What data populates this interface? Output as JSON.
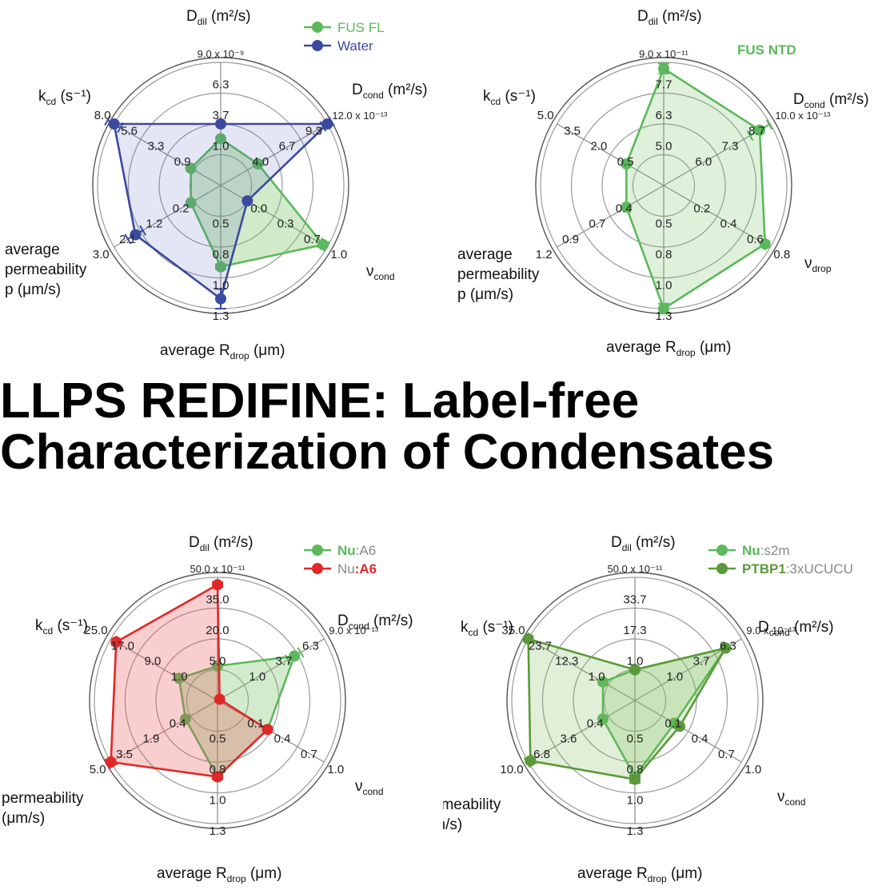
{
  "headline": {
    "line1": "LLPS REDIFINE: Label-free",
    "line2": "Characterization of Condensates"
  },
  "chart_data": [
    {
      "type": "radar",
      "axes": [
        {
          "name": "D",
          "sub": "dil",
          "unit": " (m²/s)",
          "ticks": [
            "1.0",
            "3.7",
            "6.3",
            "9.0 x 10⁻⁹"
          ]
        },
        {
          "name": "D",
          "sub": "cond",
          "unit": " (m²/s)",
          "ticks": [
            "4.0",
            "6.7",
            "9.3",
            "12.0 x 10⁻¹³"
          ]
        },
        {
          "name": "ν",
          "sub": "cond",
          "unit": "",
          "ticks": [
            "0.0",
            "0.3",
            "0.7",
            "1.0"
          ]
        },
        {
          "name": "average R",
          "sub": "drop",
          "unit": " (μm)",
          "ticks": [
            "0.5",
            "0.8",
            "1.0",
            "1.3"
          ]
        },
        {
          "name": "average\npermeability\np (μm/s)",
          "sub": "",
          "unit": "",
          "ticks": [
            "0.2",
            "1.2",
            "2.1",
            "3.0"
          ]
        },
        {
          "name": "k",
          "sub": "cd",
          "unit": " (s⁻¹)",
          "ticks": [
            "0.9",
            "3.3",
            "5.6",
            "8.0"
          ]
        }
      ],
      "series": [
        {
          "name": "FUS FL",
          "color": "#5cb85c",
          "fill": "rgba(110,190,90,0.32)",
          "values": [
            0.38,
            0.35,
            0.96,
            0.66,
            0.28,
            0.28
          ],
          "errors": [
            0,
            0,
            0.03,
            0.02,
            0,
            0
          ]
        },
        {
          "name": "Water",
          "color": "#3b4aa0",
          "fill": "rgba(90,100,190,0.16)",
          "values": [
            0.5,
            1.0,
            0.25,
            0.92,
            0.8,
            1.0
          ],
          "errors": [
            0,
            0.04,
            0,
            0.08,
            0.07,
            0.06
          ]
        }
      ],
      "legend": "top-right"
    },
    {
      "type": "radar",
      "axes": [
        {
          "name": "D",
          "sub": "dil",
          "unit": " (m²/s)",
          "ticks": [
            "5.0",
            "6.3",
            "7.7",
            "9.0 x 10⁻¹¹"
          ]
        },
        {
          "name": "D",
          "sub": "cond",
          "unit": " (m²/s)",
          "ticks": [
            "6.0",
            "7.3",
            "8.7",
            "10.0 x 10⁻¹³"
          ]
        },
        {
          "name": "ν",
          "sub": "drop",
          "unit": "",
          "ticks": [
            "0.2",
            "0.4",
            "0.6",
            "0.8"
          ]
        },
        {
          "name": "average R",
          "sub": "drop",
          "unit": " (μm)",
          "ticks": [
            "0.5",
            "0.8",
            "1.0",
            "1.3"
          ]
        },
        {
          "name": "average\npermeability\np (μm/s)",
          "sub": "",
          "unit": "",
          "ticks": [
            "0.4",
            "0.7",
            "0.9",
            "1.2"
          ]
        },
        {
          "name": "k",
          "sub": "cd",
          "unit": " (s⁻¹)",
          "ticks": [
            "0.5",
            "2.0",
            "3.5",
            "5.0"
          ]
        }
      ],
      "series": [
        {
          "name": "FUS NTD",
          "color": "#5cb85c",
          "fill": "rgba(110,190,90,0.22)",
          "values": [
            0.95,
            0.9,
            0.95,
            1.0,
            0.35,
            0.35
          ],
          "errors": [
            0.04,
            0.09,
            0.02,
            0.04,
            0,
            0
          ]
        }
      ],
      "legend": "top-right"
    },
    {
      "type": "radar",
      "axes": [
        {
          "name": "D",
          "sub": "dil",
          "unit": " (m²/s)",
          "ticks": [
            "5.0",
            "20.0",
            "35.0",
            "50.0 x 10⁻¹¹"
          ]
        },
        {
          "name": "D",
          "sub": "cond",
          "unit": " (m²/s)",
          "ticks": [
            "1.0",
            "3.7",
            "6.3",
            "9.0 x 10⁻¹³"
          ]
        },
        {
          "name": "ν",
          "sub": "cond",
          "unit": "",
          "ticks": [
            "0.1",
            "0.4",
            "0.7",
            "1.0"
          ]
        },
        {
          "name": "average R",
          "sub": "drop",
          "unit": " (μm)",
          "ticks": [
            "0.5",
            "0.8",
            "1.0",
            "1.3"
          ]
        },
        {
          "name": "permeability\n(μm/s)",
          "sub": "",
          "unit": "",
          "ticks": [
            "0.4",
            "1.9",
            "3.5",
            "5.0"
          ]
        },
        {
          "name": "k",
          "sub": "cd",
          "unit": " (s⁻¹)",
          "ticks": [
            "1.0",
            "9.0",
            "17.0",
            "25.0"
          ]
        }
      ],
      "series": [
        {
          "name": "Nu",
          "nameSuffix": ":A6",
          "color": "#5cb85c",
          "fill": "rgba(110,190,90,0.30)",
          "values": [
            0.28,
            0.72,
            0.47,
            0.62,
            0.3,
            0.36
          ],
          "errors": [
            0,
            0.06,
            0,
            0,
            0,
            0
          ]
        },
        {
          "name": "Nu",
          "nameSuffix": ":A6",
          "color": "#e02828",
          "fill": "rgba(230,80,80,0.28)",
          "values": [
            0.94,
            0.02,
            0.47,
            0.62,
            1.0,
            0.95
          ],
          "errors": [
            0.02,
            0,
            0,
            0.02,
            0.03,
            0.02
          ]
        }
      ],
      "legend": "top-right"
    },
    {
      "type": "radar",
      "axes": [
        {
          "name": "D",
          "sub": "dil",
          "unit": " (m²/s)",
          "ticks": [
            "1.0",
            "17.3",
            "33.7",
            "50.0 x 10⁻¹¹"
          ]
        },
        {
          "name": "D",
          "sub": "cond",
          "unit": " (m²/s)",
          "ticks": [
            "1.0",
            "3.7",
            "6.3",
            "9.0 x 10⁻¹³"
          ]
        },
        {
          "name": "ν",
          "sub": "cond",
          "unit": "",
          "ticks": [
            "0.1",
            "0.4",
            "0.7",
            "1.0"
          ]
        },
        {
          "name": "average R",
          "sub": "drop",
          "unit": " (μm)",
          "ticks": [
            "0.5",
            "0.8",
            "1.0",
            "1.3"
          ]
        },
        {
          "name": "permeability\n(μm/s)",
          "sub": "",
          "unit": "",
          "ticks": [
            "0.4",
            "3.6",
            "6.8",
            "10.0"
          ]
        },
        {
          "name": "k",
          "sub": "cd",
          "unit": " (s⁻¹)",
          "ticks": [
            "1.0",
            "12.3",
            "23.7",
            "35.0"
          ]
        }
      ],
      "series": [
        {
          "name": "Nu",
          "nameSuffix": ":s2m",
          "color": "#5cb85c",
          "fill": "rgba(130,200,100,0.25)",
          "values": [
            0.25,
            0.85,
            0.37,
            0.62,
            0.3,
            0.3
          ],
          "errors": [
            0,
            0,
            0,
            0.03,
            0,
            0
          ]
        },
        {
          "name": "PTBP1",
          "nameSuffix": ":3xUCUCU",
          "color": "#5a9a3a",
          "fill": "rgba(120,180,80,0.22)",
          "values": [
            0.25,
            0.85,
            0.42,
            0.64,
            0.98,
            1.0
          ],
          "errors": [
            0,
            0,
            0,
            0.03,
            0.03,
            0.02
          ]
        }
      ],
      "legend": "top-right"
    }
  ]
}
